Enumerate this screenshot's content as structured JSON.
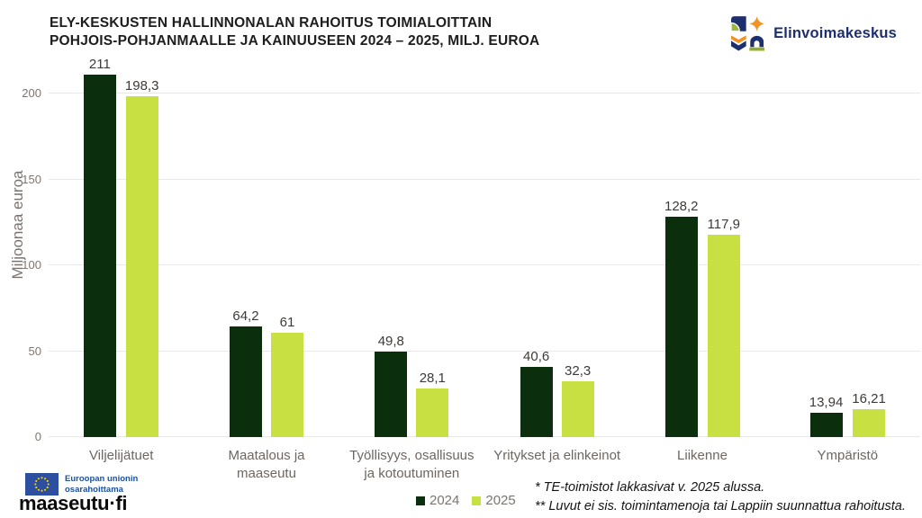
{
  "header": {
    "title_line1": "ELY-KESKUSTEN HALLINNONALAN RAHOITUS TOIMIALOITTAIN",
    "title_line2": "POHJOIS-POHJANMAALLE JA KAINUUSEEN 2024 – 2025, MILJ. EUROA",
    "logo_text": "Elinvoimakeskus"
  },
  "chart_data": {
    "type": "bar",
    "title": "ELY-keskusten hallinnonalan rahoitus toimialoittain Pohjois-Pohjanmaalle ja Kainuuseen 2024 – 2025, milj. euroa",
    "ylabel": "Miljoonaa euroa",
    "ylim": [
      0,
      215
    ],
    "yticks": [
      0,
      50,
      100,
      150,
      200
    ],
    "grid": true,
    "legend_position": "bottom-center",
    "categories": [
      "Viljelijätuet",
      "Maatalous ja maaseutu",
      "Työllisyys, osallisuus ja kotoutuminen",
      "Yritykset ja elinkeinot",
      "Liikenne",
      "Ympäristö"
    ],
    "categories_lines": [
      [
        "Viljelijätuet"
      ],
      [
        "Maatalous ja",
        "maaseutu"
      ],
      [
        "Työllisyys, osallisuus",
        "ja kotoutuminen"
      ],
      [
        "Yritykset ja elinkeinot"
      ],
      [
        "Liikenne"
      ],
      [
        "Ympäristö"
      ]
    ],
    "series": [
      {
        "name": "2024",
        "color": "#0b2e0c",
        "values": [
          211,
          64.2,
          49.8,
          40.6,
          128.2,
          13.94
        ],
        "value_labels": [
          "211",
          "64,2",
          "49,8",
          "40,6",
          "128,2",
          "13,94"
        ]
      },
      {
        "name": "2025",
        "color": "#c9e042",
        "values": [
          198.3,
          61,
          28.1,
          32.3,
          117.9,
          16.21
        ],
        "value_labels": [
          "198,3",
          "61",
          "28,1",
          "32,3",
          "117,9",
          "16,21"
        ]
      }
    ]
  },
  "footer": {
    "eu_logo_line1": "Euroopan unionin",
    "eu_logo_line2": "osarahoittama",
    "maaseutu_logo_bold": "maaseutu",
    "maaseutu_logo_suffix": "·fi",
    "footnote_line1": "* TE-toimistot lakkasivat v. 2025 alussa.",
    "footnote_line2": "** Luvut ei sis. toimintamenoja tai Lappiin suunnattua rahoitusta."
  },
  "colors": {
    "series_2024": "#0b2e0c",
    "series_2025": "#c9e042",
    "logo_navy": "#1e2f6e",
    "logo_orange": "#f29220",
    "logo_green": "#93ac33",
    "eu_blue": "#2d4fa0",
    "eu_star_yellow": "#ffd617"
  }
}
